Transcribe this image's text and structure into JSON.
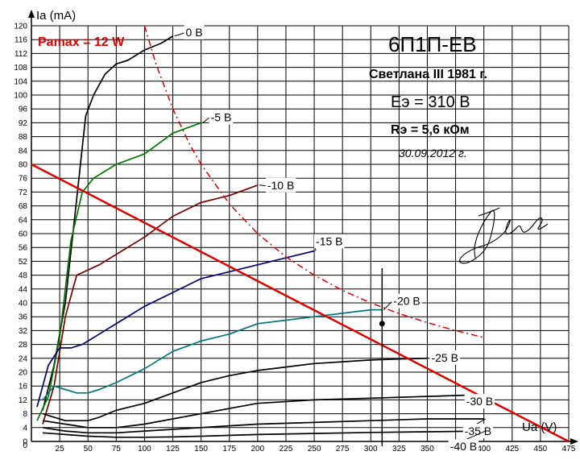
{
  "chart_data": {
    "type": "line",
    "title": "6П1П-ЕВ",
    "notes": [
      "Светлана III 1981 г.",
      "Eэ = 310 В",
      "Rэ = 5,6 кОм",
      "30.09.2012 г."
    ],
    "xlabel": "Ua (V)",
    "ylabel": "Ia (mA)",
    "xlim": [
      0,
      475
    ],
    "ylim": [
      0,
      120
    ],
    "x_ticks": [
      0,
      25,
      50,
      75,
      100,
      125,
      150,
      175,
      200,
      225,
      250,
      275,
      300,
      325,
      350,
      375,
      400,
      425,
      450,
      475
    ],
    "y_ticks": [
      0,
      4,
      8,
      12,
      16,
      20,
      24,
      28,
      32,
      36,
      40,
      44,
      48,
      52,
      56,
      60,
      64,
      68,
      72,
      76,
      80,
      84,
      88,
      92,
      96,
      100,
      104,
      108,
      112,
      116,
      120
    ],
    "grid": true,
    "series": [
      {
        "name": "0 В",
        "color": "#000000",
        "points": [
          [
            10,
            9
          ],
          [
            20,
            22
          ],
          [
            30,
            40
          ],
          [
            40,
            70
          ],
          [
            48,
            94
          ],
          [
            55,
            100
          ],
          [
            65,
            106
          ],
          [
            75,
            109
          ],
          [
            85,
            110
          ],
          [
            100,
            113
          ],
          [
            115,
            115
          ],
          [
            125,
            117
          ]
        ]
      },
      {
        "name": "-5 В",
        "color": "#007800",
        "points": [
          [
            5,
            6
          ],
          [
            15,
            13
          ],
          [
            25,
            30
          ],
          [
            35,
            58
          ],
          [
            45,
            72
          ],
          [
            55,
            76
          ],
          [
            75,
            80
          ],
          [
            100,
            83
          ],
          [
            125,
            89
          ],
          [
            150,
            92
          ]
        ]
      },
      {
        "name": "-10 В",
        "color": "#7a0000",
        "points": [
          [
            10,
            5
          ],
          [
            20,
            16
          ],
          [
            30,
            36
          ],
          [
            40,
            48
          ],
          [
            60,
            51
          ],
          [
            80,
            55
          ],
          [
            100,
            59
          ],
          [
            125,
            65
          ],
          [
            150,
            69
          ],
          [
            175,
            71
          ],
          [
            200,
            74
          ]
        ]
      },
      {
        "name": "-15 В",
        "color": "#00007a",
        "points": [
          [
            5,
            10
          ],
          [
            15,
            22
          ],
          [
            25,
            27
          ],
          [
            35,
            27
          ],
          [
            45,
            28
          ],
          [
            60,
            31
          ],
          [
            80,
            35
          ],
          [
            100,
            39
          ],
          [
            125,
            43
          ],
          [
            150,
            47
          ],
          [
            175,
            49
          ],
          [
            200,
            51
          ],
          [
            225,
            53
          ],
          [
            250,
            55
          ]
        ]
      },
      {
        "name": "-20 В",
        "color": "#007878",
        "points": [
          [
            10,
            12
          ],
          [
            20,
            16
          ],
          [
            30,
            15
          ],
          [
            40,
            14
          ],
          [
            50,
            14
          ],
          [
            60,
            15
          ],
          [
            75,
            17
          ],
          [
            100,
            21
          ],
          [
            125,
            26
          ],
          [
            150,
            29
          ],
          [
            175,
            31
          ],
          [
            200,
            34
          ],
          [
            225,
            35
          ],
          [
            250,
            36
          ],
          [
            275,
            37
          ],
          [
            300,
            38
          ],
          [
            310,
            38
          ]
        ]
      },
      {
        "name": "-25 В",
        "color": "#000000",
        "points": [
          [
            10,
            8
          ],
          [
            20,
            7
          ],
          [
            30,
            6
          ],
          [
            40,
            6
          ],
          [
            50,
            6
          ],
          [
            60,
            7
          ],
          [
            75,
            9
          ],
          [
            100,
            11
          ],
          [
            125,
            14
          ],
          [
            150,
            17
          ],
          [
            175,
            19
          ],
          [
            200,
            20.5
          ],
          [
            225,
            21.5
          ],
          [
            250,
            22.5
          ],
          [
            275,
            23
          ],
          [
            300,
            23.5
          ],
          [
            325,
            23.8
          ],
          [
            350,
            24
          ]
        ]
      },
      {
        "name": "-30 В",
        "color": "#000000",
        "points": [
          [
            10,
            6
          ],
          [
            20,
            5.5
          ],
          [
            30,
            5
          ],
          [
            40,
            4.5
          ],
          [
            50,
            4
          ],
          [
            60,
            4
          ],
          [
            75,
            4
          ],
          [
            100,
            5
          ],
          [
            125,
            6.5
          ],
          [
            150,
            8
          ],
          [
            175,
            9.5
          ],
          [
            200,
            11
          ],
          [
            250,
            12
          ],
          [
            300,
            12.5
          ],
          [
            350,
            13
          ],
          [
            400,
            13.5
          ]
        ]
      },
      {
        "name": "-35 В",
        "color": "#000000",
        "points": [
          [
            10,
            4
          ],
          [
            20,
            3.5
          ],
          [
            30,
            3
          ],
          [
            50,
            2.5
          ],
          [
            75,
            2.5
          ],
          [
            100,
            3
          ],
          [
            125,
            3.5
          ],
          [
            150,
            4
          ],
          [
            175,
            4.5
          ],
          [
            200,
            5
          ],
          [
            250,
            5.5
          ],
          [
            300,
            6
          ],
          [
            350,
            6.5
          ],
          [
            400,
            6.5
          ]
        ]
      },
      {
        "name": "-40 В",
        "color": "#000000",
        "points": [
          [
            10,
            2.5
          ],
          [
            30,
            2
          ],
          [
            50,
            1.5
          ],
          [
            75,
            1.2
          ],
          [
            100,
            1.2
          ],
          [
            125,
            1.3
          ],
          [
            150,
            1.5
          ],
          [
            200,
            2
          ],
          [
            250,
            2.3
          ],
          [
            300,
            2.6
          ],
          [
            350,
            2.8
          ],
          [
            400,
            3
          ]
        ]
      }
    ],
    "load_line": {
      "color": "#e00000",
      "points": [
        [
          0,
          80
        ],
        [
          475,
          0
        ]
      ]
    },
    "pamax_curve": {
      "label": "Pamax = 12 W",
      "color": "#e00000",
      "points": [
        [
          100,
          120
        ],
        [
          110,
          109.1
        ],
        [
          125,
          96
        ],
        [
          140,
          85.7
        ],
        [
          150,
          80
        ],
        [
          175,
          68.6
        ],
        [
          200,
          60
        ],
        [
          225,
          53.3
        ],
        [
          250,
          48
        ],
        [
          275,
          43.6
        ],
        [
          300,
          40
        ],
        [
          325,
          36.9
        ],
        [
          350,
          34.3
        ],
        [
          375,
          32
        ],
        [
          400,
          30
        ]
      ]
    },
    "operating_point": {
      "x": 310,
      "y": 34
    }
  }
}
